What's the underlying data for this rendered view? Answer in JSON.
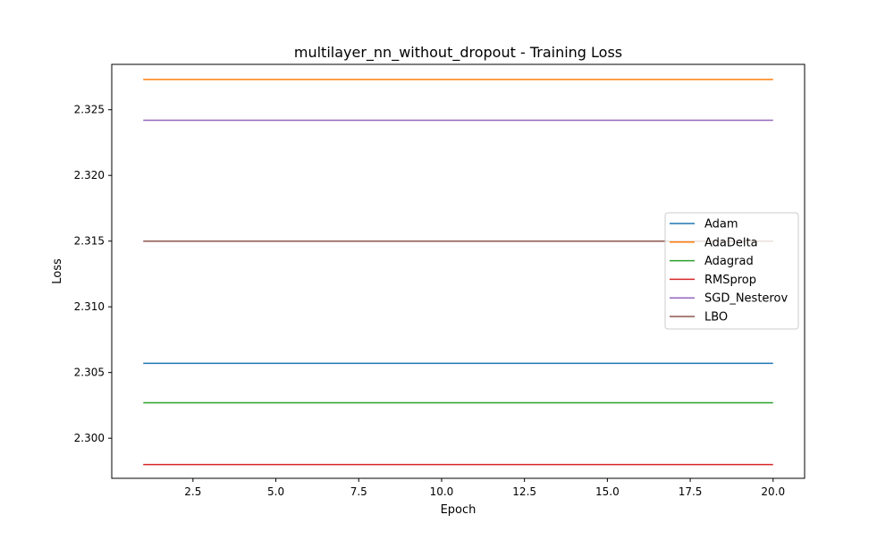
{
  "chart_data": {
    "type": "line",
    "title": "multilayer_nn_without_dropout - Training Loss",
    "xlabel": "Epoch",
    "ylabel": "Loss",
    "xlim": [
      0.05,
      20.95
    ],
    "ylim": [
      2.29695,
      2.32845
    ],
    "x_ticks": [
      2.5,
      5.0,
      7.5,
      10.0,
      12.5,
      15.0,
      17.5,
      20.0
    ],
    "x_tick_labels": [
      "2.5",
      "5.0",
      "7.5",
      "10.0",
      "12.5",
      "15.0",
      "17.5",
      "20.0"
    ],
    "y_ticks": [
      2.3,
      2.305,
      2.31,
      2.315,
      2.32,
      2.325
    ],
    "y_tick_labels": [
      "2.300",
      "2.305",
      "2.310",
      "2.315",
      "2.320",
      "2.325"
    ],
    "x": [
      1,
      2,
      3,
      4,
      5,
      6,
      7,
      8,
      9,
      10,
      11,
      12,
      13,
      14,
      15,
      16,
      17,
      18,
      19,
      20
    ],
    "grid": false,
    "legend_position": "center-right",
    "series": [
      {
        "name": "Adam",
        "color": "#1f77b4",
        "values": [
          2.3057,
          2.3057,
          2.3057,
          2.3057,
          2.3057,
          2.3057,
          2.3057,
          2.3057,
          2.3057,
          2.3057,
          2.3057,
          2.3057,
          2.3057,
          2.3057,
          2.3057,
          2.3057,
          2.3057,
          2.3057,
          2.3057,
          2.3057
        ]
      },
      {
        "name": "AdaDelta",
        "color": "#ff7f0e",
        "values": [
          2.3273,
          2.3273,
          2.3273,
          2.3273,
          2.3273,
          2.3273,
          2.3273,
          2.3273,
          2.3273,
          2.3273,
          2.3273,
          2.3273,
          2.3273,
          2.3273,
          2.3273,
          2.3273,
          2.3273,
          2.3273,
          2.3273,
          2.3273
        ]
      },
      {
        "name": "Adagrad",
        "color": "#2ca02c",
        "values": [
          2.3027,
          2.3027,
          2.3027,
          2.3027,
          2.3027,
          2.3027,
          2.3027,
          2.3027,
          2.3027,
          2.3027,
          2.3027,
          2.3027,
          2.3027,
          2.3027,
          2.3027,
          2.3027,
          2.3027,
          2.3027,
          2.3027,
          2.3027
        ]
      },
      {
        "name": "RMSprop",
        "color": "#d62728",
        "values": [
          2.298,
          2.298,
          2.298,
          2.298,
          2.298,
          2.298,
          2.298,
          2.298,
          2.298,
          2.298,
          2.298,
          2.298,
          2.298,
          2.298,
          2.298,
          2.298,
          2.298,
          2.298,
          2.298,
          2.298
        ]
      },
      {
        "name": "SGD_Nesterov",
        "color": "#9467bd",
        "values": [
          2.3242,
          2.3242,
          2.3242,
          2.3242,
          2.3242,
          2.3242,
          2.3242,
          2.3242,
          2.3242,
          2.3242,
          2.3242,
          2.3242,
          2.3242,
          2.3242,
          2.3242,
          2.3242,
          2.3242,
          2.3242,
          2.3242,
          2.3242
        ]
      },
      {
        "name": "LBO",
        "color": "#8c564b",
        "values": [
          2.315,
          2.315,
          2.315,
          2.315,
          2.315,
          2.315,
          2.315,
          2.315,
          2.315,
          2.315,
          2.315,
          2.315,
          2.315,
          2.315,
          2.315,
          2.315,
          2.315,
          2.315,
          2.315,
          2.315
        ]
      }
    ]
  }
}
